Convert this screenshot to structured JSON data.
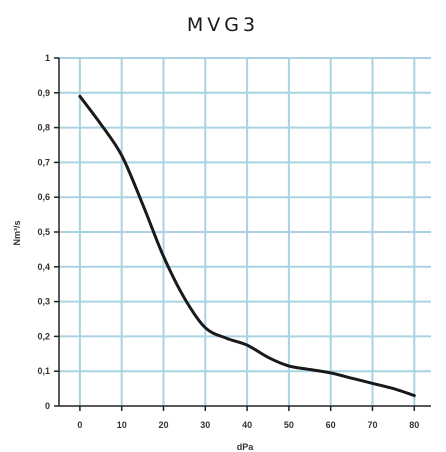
{
  "chart_data": {
    "type": "line",
    "title": "MVG3",
    "xlabel": "dPa",
    "ylabel": "Nm³/s",
    "xlim": [
      -5,
      84
    ],
    "ylim": [
      0,
      1
    ],
    "x_ticks": [
      0,
      10,
      20,
      30,
      40,
      50,
      60,
      70,
      80
    ],
    "y_ticks": [
      0,
      0.1,
      0.2,
      0.3,
      0.4,
      0.5,
      0.6,
      0.7,
      0.8,
      0.9,
      1
    ],
    "y_tick_labels": [
      "0",
      "0,1",
      "0,2",
      "0,3",
      "0,4",
      "0,5",
      "0,6",
      "0,7",
      "0,8",
      "0,9",
      "1"
    ],
    "grid": true,
    "legend": "none",
    "colors": {
      "grid": "#a9d3e3",
      "axis": "#222222",
      "line": "#1a1a1a"
    },
    "series": [
      {
        "x": [
          0,
          5,
          10,
          15,
          20,
          25,
          30,
          35,
          40,
          45,
          50,
          55,
          60,
          65,
          70,
          75,
          80
        ],
        "y": [
          0.89,
          0.81,
          0.72,
          0.58,
          0.43,
          0.31,
          0.225,
          0.195,
          0.175,
          0.14,
          0.115,
          0.105,
          0.095,
          0.08,
          0.065,
          0.05,
          0.03
        ]
      }
    ]
  }
}
